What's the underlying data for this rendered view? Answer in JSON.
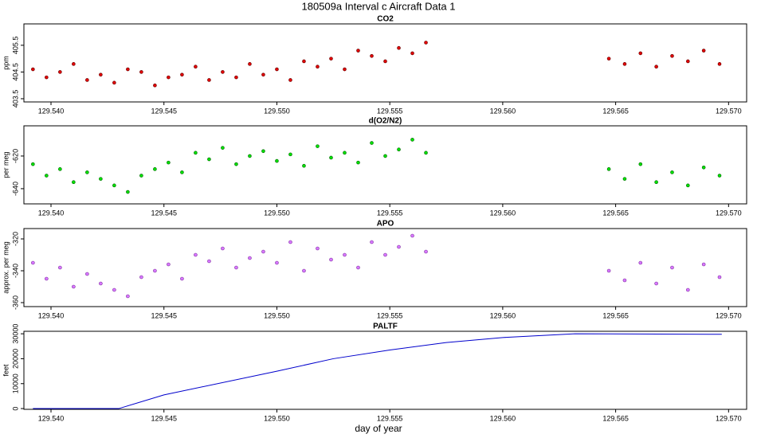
{
  "title": "180509a   Interval c Aircraft Data 1",
  "xlabel": "day of year",
  "chart_data": [
    {
      "type": "scatter",
      "title": "CO2",
      "ylabel": "ppm",
      "color": "#e00000",
      "edge": "#600000",
      "xlim": [
        129.5388,
        129.5708
      ],
      "ylim": [
        403.38,
        406.3
      ],
      "xticks": [
        {
          "value": 129.54,
          "label": "129.540"
        },
        {
          "value": 129.545,
          "label": "129.545"
        },
        {
          "value": 129.55,
          "label": "129.550"
        },
        {
          "value": 129.555,
          "label": "129.555"
        },
        {
          "value": 129.56,
          "label": "129.560"
        },
        {
          "value": 129.565,
          "label": "129.565"
        },
        {
          "value": 129.57,
          "label": "129.570"
        }
      ],
      "yticks": [
        403.5,
        404.5,
        405.5
      ],
      "x": [
        129.5392,
        129.5398,
        129.5404,
        129.541,
        129.5416,
        129.5422,
        129.5428,
        129.5434,
        129.544,
        129.5446,
        129.5452,
        129.5458,
        129.5464,
        129.547,
        129.5476,
        129.5482,
        129.5488,
        129.5494,
        129.55,
        129.5506,
        129.5512,
        129.5518,
        129.5524,
        129.553,
        129.5536,
        129.5542,
        129.5548,
        129.5554,
        129.556,
        129.5566,
        129.5647,
        129.5654,
        129.5661,
        129.5668,
        129.5675,
        129.5682,
        129.5689,
        129.5696
      ],
      "values": [
        404.6,
        404.3,
        404.5,
        404.8,
        404.2,
        404.4,
        404.1,
        404.6,
        404.5,
        404.0,
        404.3,
        404.4,
        404.7,
        404.2,
        404.5,
        404.3,
        404.8,
        404.4,
        404.6,
        404.2,
        404.9,
        404.7,
        405.0,
        404.6,
        405.3,
        405.1,
        404.9,
        405.4,
        405.2,
        405.6,
        405.0,
        404.8,
        405.2,
        404.7,
        405.1,
        404.9,
        405.3,
        404.8
      ]
    },
    {
      "type": "scatter",
      "title": "d(O2/N2)",
      "ylabel": "per meg",
      "color": "#00e000",
      "edge": "#006000",
      "xlim": [
        129.5388,
        129.5708
      ],
      "ylim": [
        -649.3,
        -601.5
      ],
      "xticks": [
        {
          "value": 129.54,
          "label": "129.540"
        },
        {
          "value": 129.545,
          "label": "129.545"
        },
        {
          "value": 129.55,
          "label": "129.550"
        },
        {
          "value": 129.555,
          "label": "129.555"
        },
        {
          "value": 129.56,
          "label": "129.560"
        },
        {
          "value": 129.565,
          "label": "129.565"
        },
        {
          "value": 129.57,
          "label": "129.570"
        }
      ],
      "yticks": [
        -640,
        -620
      ],
      "x": [
        129.5392,
        129.5398,
        129.5404,
        129.541,
        129.5416,
        129.5422,
        129.5428,
        129.5434,
        129.544,
        129.5446,
        129.5452,
        129.5458,
        129.5464,
        129.547,
        129.5476,
        129.5482,
        129.5488,
        129.5494,
        129.55,
        129.5506,
        129.5512,
        129.5518,
        129.5524,
        129.553,
        129.5536,
        129.5542,
        129.5548,
        129.5554,
        129.556,
        129.5566,
        129.5647,
        129.5654,
        129.5661,
        129.5668,
        129.5675,
        129.5682,
        129.5689,
        129.5696
      ],
      "values": [
        -625,
        -632,
        -628,
        -636,
        -630,
        -634,
        -638,
        -642,
        -632,
        -628,
        -624,
        -630,
        -618,
        -622,
        -615,
        -625,
        -620,
        -617,
        -623,
        -619,
        -626,
        -614,
        -621,
        -618,
        -624,
        -612,
        -620,
        -616,
        -610,
        -618,
        -628,
        -634,
        -625,
        -636,
        -630,
        -638,
        -627,
        -632
      ]
    },
    {
      "type": "scatter",
      "title": "APO",
      "ylabel": "approx. per meg",
      "color": "#d878ff",
      "edge": "#7a2a9a",
      "xlim": [
        129.5388,
        129.5708
      ],
      "ylim": [
        -362.5,
        -313.5
      ],
      "xticks": [
        {
          "value": 129.54,
          "label": "129.540"
        },
        {
          "value": 129.545,
          "label": "129.545"
        },
        {
          "value": 129.55,
          "label": "129.550"
        },
        {
          "value": 129.555,
          "label": "129.555"
        },
        {
          "value": 129.56,
          "label": "129.560"
        },
        {
          "value": 129.565,
          "label": "129.565"
        },
        {
          "value": 129.57,
          "label": "129.570"
        }
      ],
      "yticks": [
        -360,
        -340,
        -320
      ],
      "x": [
        129.5392,
        129.5398,
        129.5404,
        129.541,
        129.5416,
        129.5422,
        129.5428,
        129.5434,
        129.544,
        129.5446,
        129.5452,
        129.5458,
        129.5464,
        129.547,
        129.5476,
        129.5482,
        129.5488,
        129.5494,
        129.55,
        129.5506,
        129.5512,
        129.5518,
        129.5524,
        129.553,
        129.5536,
        129.5542,
        129.5548,
        129.5554,
        129.556,
        129.5566,
        129.5647,
        129.5654,
        129.5661,
        129.5668,
        129.5675,
        129.5682,
        129.5689,
        129.5696
      ],
      "values": [
        -335,
        -345,
        -338,
        -350,
        -342,
        -348,
        -352,
        -356,
        -344,
        -340,
        -336,
        -345,
        -330,
        -334,
        -326,
        -338,
        -332,
        -328,
        -335,
        -322,
        -340,
        -326,
        -333,
        -330,
        -338,
        -322,
        -330,
        -325,
        -318,
        -328,
        -340,
        -346,
        -335,
        -348,
        -338,
        -352,
        -336,
        -344
      ]
    },
    {
      "type": "line",
      "title": "PALTF",
      "ylabel": "feet",
      "color": "#0000cc",
      "xlim": [
        129.5388,
        129.5708
      ],
      "ylim": [
        -300,
        31000
      ],
      "xticks": [
        {
          "value": 129.54,
          "label": "129.540"
        },
        {
          "value": 129.545,
          "label": "129.545"
        },
        {
          "value": 129.55,
          "label": "129.550"
        },
        {
          "value": 129.555,
          "label": "129.555"
        },
        {
          "value": 129.56,
          "label": "129.560"
        },
        {
          "value": 129.565,
          "label": "129.565"
        },
        {
          "value": 129.57,
          "label": "129.570"
        }
      ],
      "yticks": [
        0,
        10000,
        20000,
        30000
      ],
      "x": [
        129.5392,
        129.543,
        129.545,
        129.55,
        129.5525,
        129.555,
        129.5575,
        129.56,
        129.5632,
        129.5697
      ],
      "values": [
        0,
        0,
        5500,
        15000,
        20000,
        23500,
        26500,
        28500,
        30000,
        29800
      ]
    }
  ]
}
